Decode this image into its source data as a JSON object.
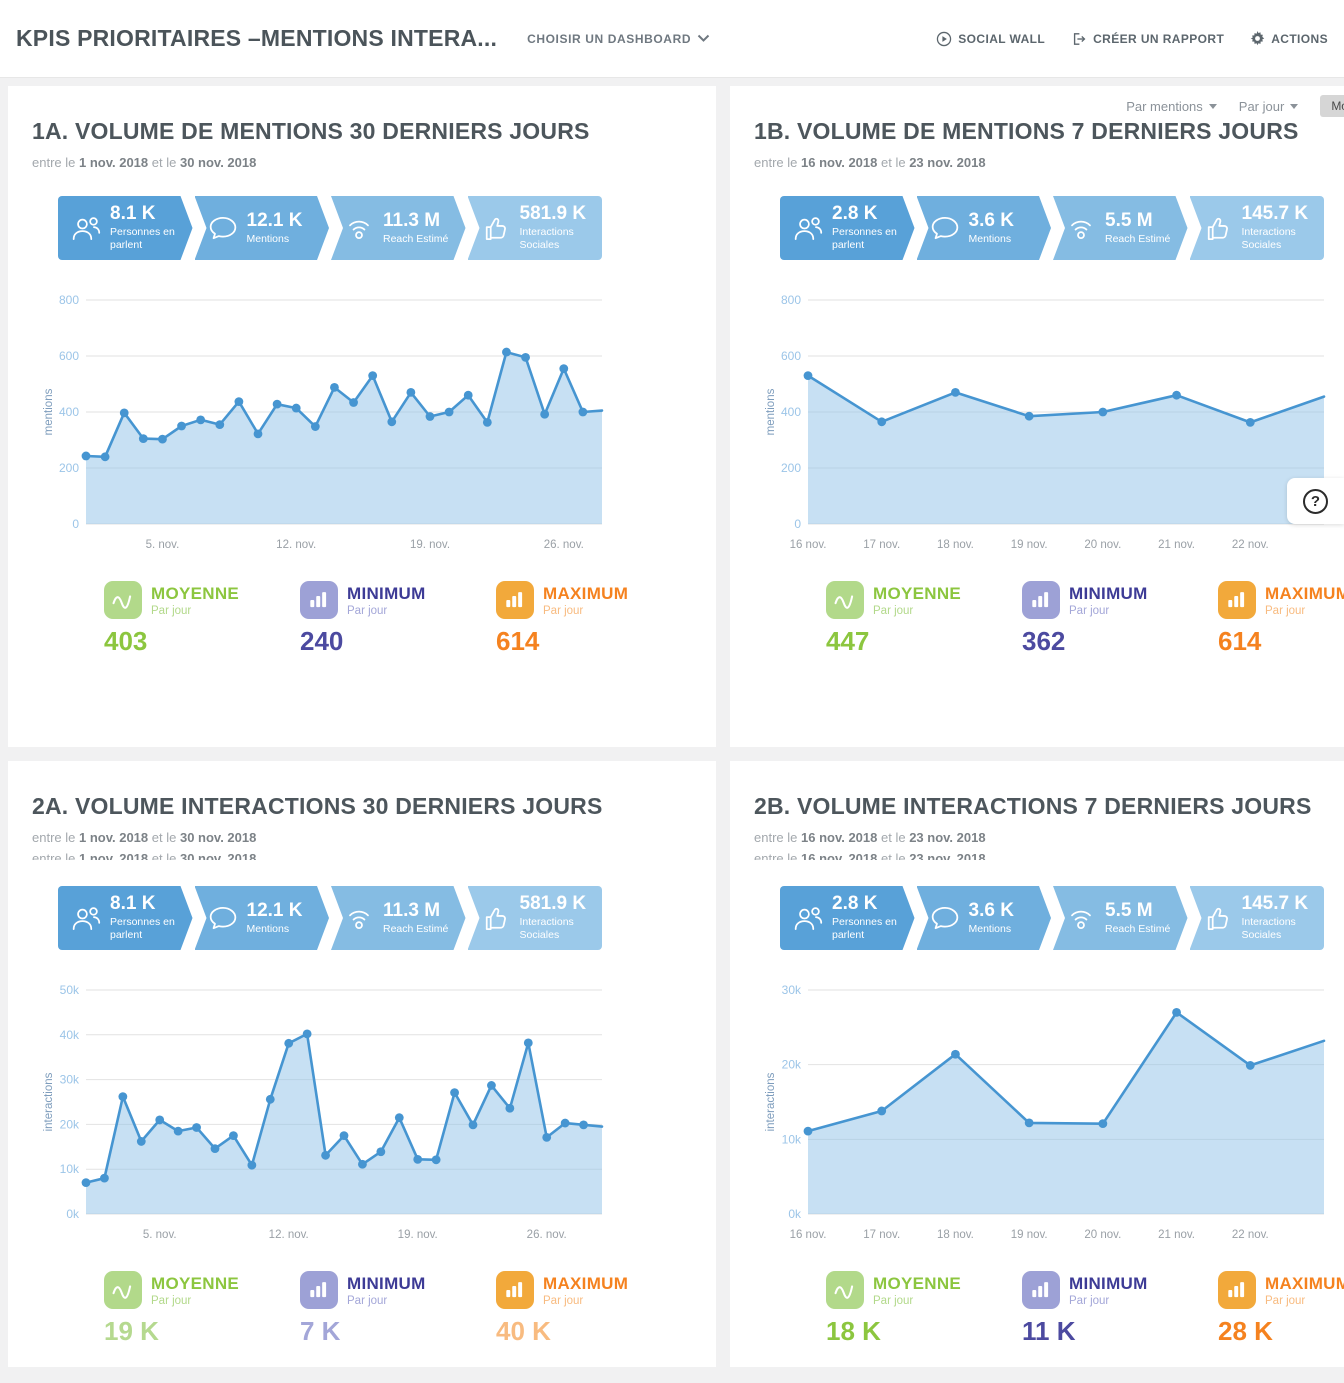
{
  "header": {
    "title": "KPIS PRIORITAIRES –MENTIONS INTERA...",
    "choose_dashboard": "CHOISIR UN DASHBOARD",
    "social_wall": "SOCIAL WALL",
    "create_report": "CRÉER UN RAPPORT",
    "actions": "ACTIONS"
  },
  "controls": {
    "par_mentions": "Par mentions",
    "par_jour": "Par jour",
    "modifier": "Modifier"
  },
  "stat_labels": {
    "moyenne": "MOYENNE",
    "minimum": "MINIMUM",
    "maximum": "MAXIMUM",
    "par_jour": "Par jour"
  },
  "help": {
    "icon": "?"
  },
  "panels": [
    {
      "title": "1A. VOLUME DE MENTIONS 30 DERNIERS JOURS",
      "dates": {
        "p1": "entre le",
        "start": "1 nov. 2018",
        "p2": "et le",
        "end": "30 nov. 2018"
      },
      "kpis": [
        {
          "value": "8.1 K",
          "label": "Personnes en parlent"
        },
        {
          "value": "12.1 K",
          "label": "Mentions"
        },
        {
          "value": "11.3 M",
          "label": "Reach Estimé"
        },
        {
          "value": "581.9 K",
          "label": "Interactions Sociales"
        }
      ],
      "stats": {
        "moyenne": "403",
        "minimum": "240",
        "maximum": "614"
      },
      "show_controls": false,
      "date_repeat_clipped": false,
      "light_values": false
    },
    {
      "title": "1B. VOLUME DE MENTIONS 7 DERNIERS JOURS",
      "dates": {
        "p1": "entre le",
        "start": "16 nov. 2018",
        "p2": "et le",
        "end": "23 nov. 2018"
      },
      "kpis": [
        {
          "value": "2.8 K",
          "label": "Personnes en parlent"
        },
        {
          "value": "3.6 K",
          "label": "Mentions"
        },
        {
          "value": "5.5 M",
          "label": "Reach Estimé"
        },
        {
          "value": "145.7 K",
          "label": "Interactions Sociales"
        }
      ],
      "stats": {
        "moyenne": "447",
        "minimum": "362",
        "maximum": "614"
      },
      "show_controls": true,
      "date_repeat_clipped": false,
      "light_values": false
    },
    {
      "title": "2A. VOLUME INTERACTIONS 30 DERNIERS JOURS",
      "dates": {
        "p1": "entre le",
        "start": "1 nov. 2018",
        "p2": "et le",
        "end": "30 nov. 2018"
      },
      "kpis": [
        {
          "value": "8.1 K",
          "label": "Personnes en parlent"
        },
        {
          "value": "12.1 K",
          "label": "Mentions"
        },
        {
          "value": "11.3 M",
          "label": "Reach Estimé"
        },
        {
          "value": "581.9 K",
          "label": "Interactions Sociales"
        }
      ],
      "stats": {
        "moyenne": "19 K",
        "minimum": "7 K",
        "maximum": "40 K"
      },
      "show_controls": false,
      "date_repeat_clipped": true,
      "light_values": true
    },
    {
      "title": "2B. VOLUME INTERACTIONS 7 DERNIERS JOURS",
      "dates": {
        "p1": "entre le",
        "start": "16 nov. 2018",
        "p2": "et le",
        "end": "23 nov. 2018"
      },
      "kpis": [
        {
          "value": "2.8 K",
          "label": "Personnes en parlent"
        },
        {
          "value": "3.6 K",
          "label": "Mentions"
        },
        {
          "value": "5.5 M",
          "label": "Reach Estimé"
        },
        {
          "value": "145.7 K",
          "label": "Interactions Sociales"
        }
      ],
      "stats": {
        "moyenne": "18 K",
        "minimum": "11 K",
        "maximum": "28 K"
      },
      "show_controls": false,
      "date_repeat_clipped": true,
      "light_values": false
    }
  ],
  "chart_data": [
    {
      "type": "area",
      "title": "Volume de mentions 30 derniers jours",
      "ylabel": "mentions",
      "y_max": 800,
      "y_ticks": [
        [
          800,
          "800"
        ],
        [
          600,
          "600"
        ],
        [
          400,
          "400"
        ],
        [
          200,
          "200"
        ],
        [
          0,
          "0"
        ]
      ],
      "values": [
        243,
        240,
        397,
        305,
        303,
        350,
        372,
        355,
        437,
        322,
        428,
        414,
        348,
        488,
        434,
        530,
        365,
        470,
        384,
        400,
        460,
        363,
        614,
        595,
        392,
        555,
        400
      ],
      "edge_value": 405,
      "x_labels": [
        {
          "i": 4,
          "label": "5. nov."
        },
        {
          "i": 11,
          "label": "12. nov."
        },
        {
          "i": 18,
          "label": "19. nov."
        },
        {
          "i": 25,
          "label": "26. nov."
        }
      ]
    },
    {
      "type": "area",
      "title": "Volume de mentions 7 derniers jours",
      "ylabel": "mentions",
      "y_max": 800,
      "y_ticks": [
        [
          800,
          "800"
        ],
        [
          600,
          "600"
        ],
        [
          400,
          "400"
        ],
        [
          200,
          "200"
        ],
        [
          0,
          "0"
        ]
      ],
      "values": [
        530,
        365,
        470,
        385,
        400,
        460,
        363
      ],
      "edge_value": 455,
      "x_labels": [
        {
          "i": 0,
          "label": "16 nov."
        },
        {
          "i": 1,
          "label": "17 nov."
        },
        {
          "i": 2,
          "label": "18 nov."
        },
        {
          "i": 3,
          "label": "19 nov."
        },
        {
          "i": 4,
          "label": "20 nov."
        },
        {
          "i": 5,
          "label": "21 nov."
        },
        {
          "i": 6,
          "label": "22 nov."
        }
      ]
    },
    {
      "type": "area",
      "title": "Volume interactions 30 derniers jours",
      "ylabel": "interactions",
      "y_max": 50000,
      "y_ticks": [
        [
          50000,
          "50k"
        ],
        [
          40000,
          "40k"
        ],
        [
          30000,
          "30k"
        ],
        [
          20000,
          "20k"
        ],
        [
          10000,
          "10k"
        ],
        [
          0,
          "0k"
        ]
      ],
      "values": [
        7000,
        8000,
        26200,
        16200,
        21000,
        18500,
        19300,
        14600,
        17500,
        10900,
        25600,
        38100,
        40200,
        13100,
        17500,
        11100,
        13900,
        21500,
        12200,
        12100,
        27100,
        19900,
        28700,
        23600,
        38200,
        17100,
        20300,
        19900
      ],
      "edge_value": 19500,
      "x_labels": [
        {
          "i": 4,
          "label": "5. nov."
        },
        {
          "i": 11,
          "label": "12. nov."
        },
        {
          "i": 18,
          "label": "19. nov."
        },
        {
          "i": 25,
          "label": "26. nov."
        }
      ]
    },
    {
      "type": "area",
      "title": "Volume interactions 7 derniers jours",
      "ylabel": "interactions",
      "y_max": 30000,
      "y_ticks": [
        [
          30000,
          "30k"
        ],
        [
          20000,
          "20k"
        ],
        [
          10000,
          "10k"
        ],
        [
          0,
          "0k"
        ]
      ],
      "values": [
        11100,
        13800,
        21400,
        12200,
        12100,
        27000,
        19900
      ],
      "edge_value": 23200,
      "x_labels": [
        {
          "i": 0,
          "label": "16 nov."
        },
        {
          "i": 1,
          "label": "17 nov."
        },
        {
          "i": 2,
          "label": "18 nov."
        },
        {
          "i": 3,
          "label": "19 nov."
        },
        {
          "i": 4,
          "label": "20 nov."
        },
        {
          "i": 5,
          "label": "21 nov."
        },
        {
          "i": 6,
          "label": "22 nov."
        }
      ]
    }
  ],
  "colors": {
    "kpi_segments": [
      "#58a1d8",
      "#6fafde",
      "#85bce3",
      "#9bc9ea"
    ],
    "chart_line": "#4695d1",
    "chart_fill": "#90c2e8",
    "moyenne_green": "#8cc63f",
    "minimum_indigo": "#3d3b96",
    "maximum_orange": "#f5821f"
  }
}
